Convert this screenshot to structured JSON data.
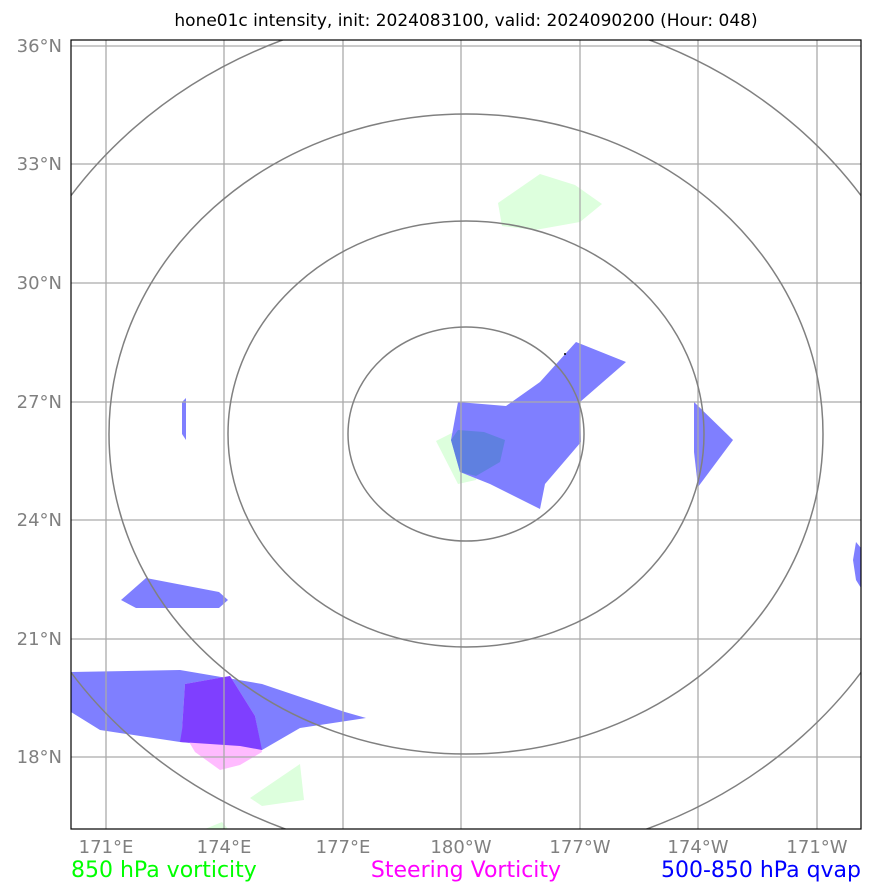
{
  "title": "hone01c intensity, init: 2024083100, valid: 2024090200 (Hour: 048)",
  "lat_labels": [
    "36°N",
    "33°N",
    "30°N",
    "27°N",
    "24°N",
    "21°N",
    "18°N"
  ],
  "lon_labels": [
    "171°E",
    "174°E",
    "177°E",
    "180°W",
    "177°W",
    "174°W",
    "171°W"
  ],
  "legend": [
    {
      "label": "850 hPa vorticity",
      "color": "#00ff00"
    },
    {
      "label": "Steering Vorticity",
      "color": "#ff00ff"
    },
    {
      "label": "500-850 hPa qvap",
      "color": "#0000ff"
    }
  ],
  "colors": {
    "vorticity_850": "#ddffdd",
    "steering": "#ffbbff",
    "qvap": "#7f7fff",
    "grid": "#aaaaaa",
    "range_rings": "#808080"
  },
  "map": {
    "lat_range": [
      "16.2°N",
      "36.1°N"
    ],
    "lon_range": [
      "170°E",
      "169.5°W"
    ],
    "center": "180°W, 26°N",
    "range_rings": 4
  }
}
